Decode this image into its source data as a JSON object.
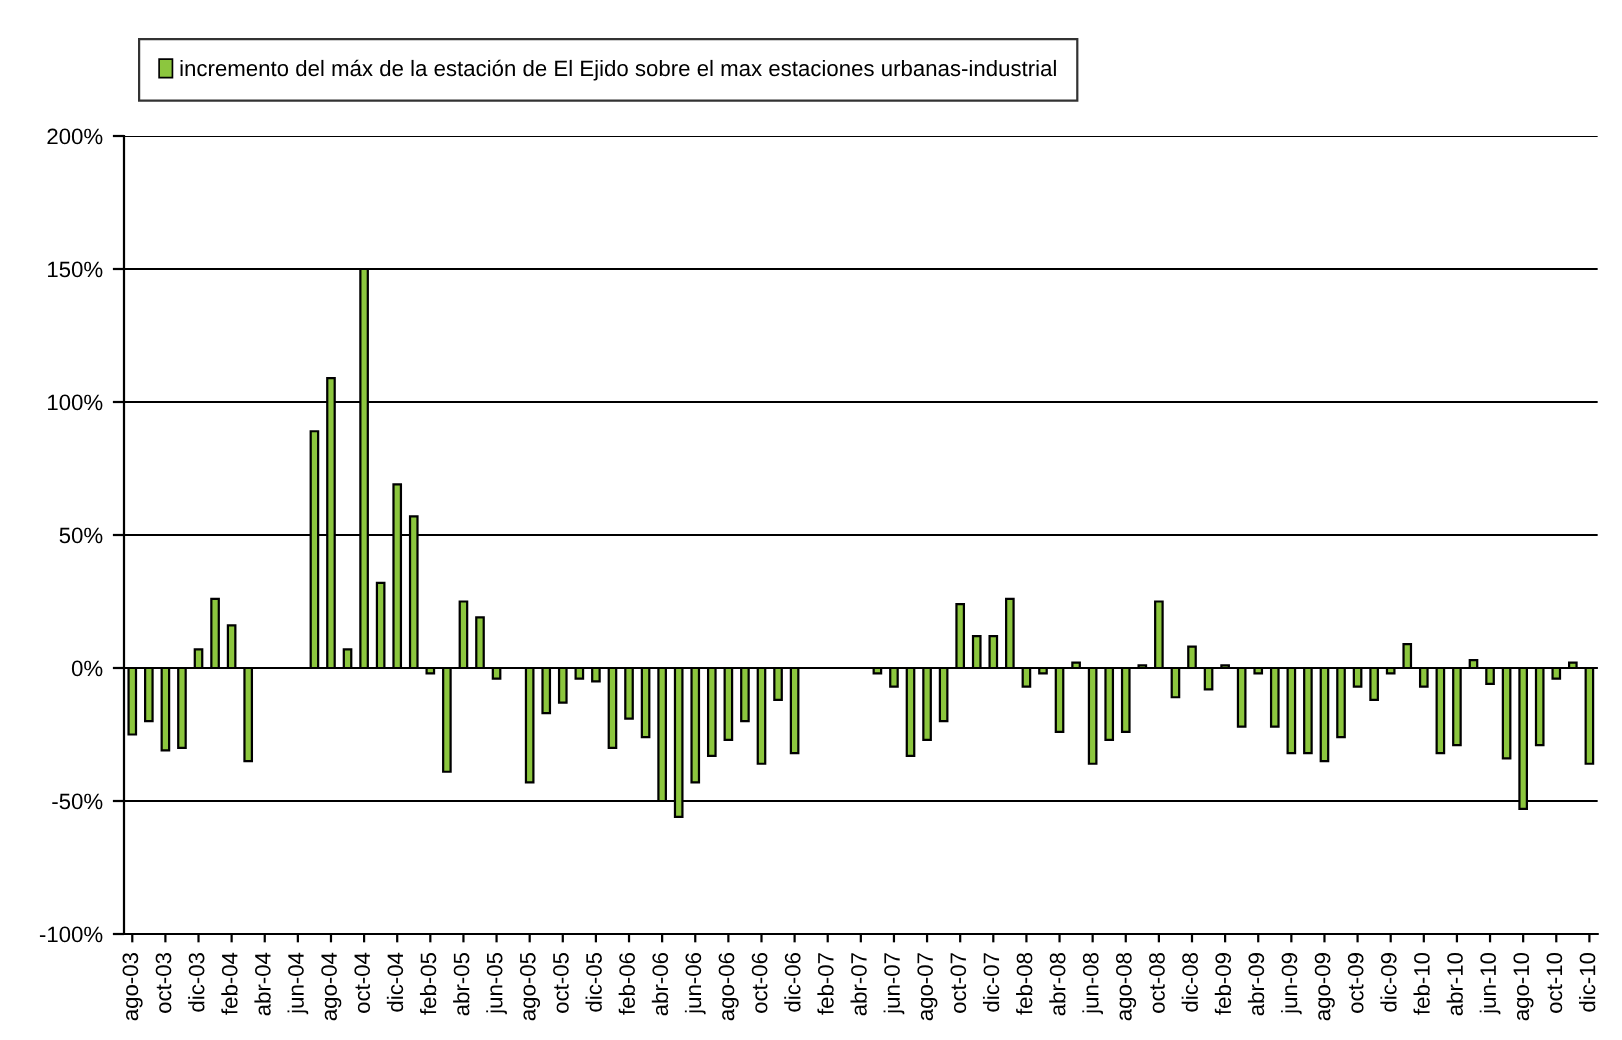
{
  "chart_data": {
    "type": "bar",
    "categories": [
      "ago-03",
      null,
      "oct-03",
      null,
      "dic-03",
      null,
      "feb-04",
      null,
      "abr-04",
      null,
      "jun-04",
      null,
      "ago-04",
      null,
      "oct-04",
      null,
      "dic-04",
      null,
      "feb-05",
      null,
      "abr-05",
      null,
      "jun-05",
      null,
      "ago-05",
      null,
      "oct-05",
      null,
      "dic-05",
      null,
      "feb-06",
      null,
      "abr-06",
      null,
      "jun-06",
      null,
      "ago-06",
      null,
      "oct-06",
      null,
      "dic-06",
      null,
      "feb-07",
      null,
      "abr-07",
      null,
      "jun-07",
      null,
      "ago-07",
      null,
      "oct-07",
      null,
      "dic-07",
      null,
      "feb-08",
      null,
      "abr-08",
      null,
      "jun-08",
      null,
      "ago-08",
      null,
      "oct-08",
      null,
      "dic-08",
      null,
      "feb-09",
      null,
      "abr-09",
      null,
      "jun-09",
      null,
      "ago-09",
      null,
      "oct-09",
      null,
      "dic-09",
      null,
      "feb-10",
      null,
      "abr-10",
      null,
      "jun-10",
      null,
      "ago-10",
      null,
      "oct-10",
      null,
      "dic-10"
    ],
    "series": [
      {
        "name": "incremento del máx de la estación de El Ejido sobre el max estaciones urbanas-industrial",
        "color": "#8cc63e",
        "values": [
          -25,
          -20,
          -31,
          -30,
          7,
          26,
          16,
          -35,
          null,
          null,
          null,
          89,
          109,
          7,
          150,
          32,
          69,
          57,
          -2,
          -39,
          25,
          19,
          -4,
          null,
          -43,
          -17,
          -13,
          -4,
          -5,
          -30,
          -19,
          -26,
          -50,
          -56,
          -43,
          -33,
          -27,
          -20,
          -36,
          -12,
          -32,
          null,
          null,
          null,
          null,
          -2,
          -7,
          -33,
          -27,
          -20,
          24,
          12,
          12,
          26,
          -7,
          -2,
          -24,
          2,
          -36,
          -27,
          -24,
          1,
          25,
          -11,
          8,
          -8,
          1,
          -22,
          -2,
          -22,
          -32,
          -32,
          -35,
          -26,
          -7,
          -12,
          -2,
          9,
          -7,
          -32,
          -29,
          3,
          -6,
          -34,
          -53,
          -29,
          -4,
          2,
          -36
        ]
      }
    ],
    "ylim": [
      -100,
      200
    ],
    "yticks": [
      {
        "value": -100,
        "label": "-100%"
      },
      {
        "value": -50,
        "label": "-50%"
      },
      {
        "value": 0,
        "label": "0%"
      },
      {
        "value": 50,
        "label": "50%"
      },
      {
        "value": 100,
        "label": "100%"
      },
      {
        "value": 150,
        "label": "150%"
      },
      {
        "value": 200,
        "label": "200%"
      }
    ],
    "grid": "y",
    "legend": "top"
  }
}
